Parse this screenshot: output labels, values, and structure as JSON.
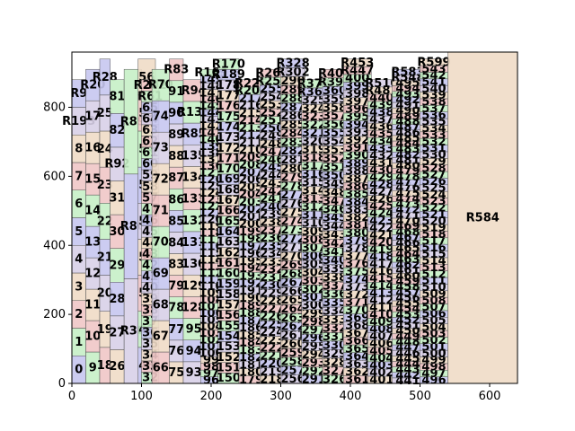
{
  "chart_data": {
    "type": "other",
    "subtype": "packed-rectangles",
    "title": "",
    "xlabel": "",
    "ylabel": "",
    "xlim": [
      0,
      640
    ],
    "ylim": [
      0,
      960
    ],
    "x_ticks": [
      0,
      100,
      200,
      300,
      400,
      500,
      600
    ],
    "y_ticks": [
      0,
      200,
      400,
      600,
      800
    ],
    "grid": false,
    "legend": "none",
    "palette": [
      "#c7c7ef",
      "#c7efc7",
      "#efc7c7",
      "#efdcc7",
      "#d8d0e8"
    ],
    "columns": [
      {
        "x0": 0,
        "x1": 20,
        "labels": [
          "0",
          "1",
          "2",
          "3",
          "4",
          "5",
          "6",
          "7",
          "8",
          "R193",
          "R9"
        ]
      },
      {
        "x0": 20,
        "x1": 40,
        "labels": [
          "9",
          "10",
          "11",
          "12",
          "13",
          "14",
          "15",
          "16",
          "17",
          "R20"
        ]
      },
      {
        "x0": 40,
        "x1": 55,
        "labels": [
          "18",
          "19",
          "20",
          "21",
          "22",
          "23",
          "24",
          "25",
          "R28"
        ]
      },
      {
        "x0": 55,
        "x1": 75,
        "labels": [
          "26",
          "27",
          "28",
          "29",
          "30",
          "31",
          "R92",
          "82",
          "81"
        ]
      },
      {
        "x0": 75,
        "x1": 100,
        "labels": [
          "R38",
          "R80",
          "R89"
        ]
      },
      {
        "x0": 95,
        "x1": 120,
        "labels": [
          "48",
          "49",
          "50",
          "51",
          "52",
          "53",
          "54",
          "55",
          "56"
        ]
      },
      {
        "x0": 100,
        "x1": 125,
        "labels": [
          "32",
          "33",
          "34",
          "35",
          "36",
          "37",
          "38",
          "39",
          "40",
          "41",
          "42",
          "43",
          "44",
          "45",
          "46",
          "47",
          "57",
          "58",
          "59",
          "60",
          "61",
          "62",
          "63",
          "64",
          "65",
          "R61",
          "R202"
        ]
      },
      {
        "x0": 115,
        "x1": 140,
        "labels": [
          "66",
          "67",
          "68",
          "69",
          "70",
          "71",
          "72",
          "73",
          "74",
          "R70"
        ]
      },
      {
        "x0": 140,
        "x1": 160,
        "labels": [
          "75",
          "76",
          "77",
          "78",
          "79",
          "83",
          "84",
          "85",
          "86",
          "87",
          "88",
          "89",
          "90",
          "91",
          "R83"
        ]
      },
      {
        "x0": 160,
        "x1": 190,
        "labels": [
          "93",
          "94",
          "95",
          "128",
          "129",
          "130",
          "131",
          "132",
          "133",
          "134",
          "135",
          "R85",
          "R138",
          "R94"
        ]
      },
      {
        "x0": 185,
        "x1": 215,
        "labels": [
          "96",
          "97",
          "98",
          "99",
          "100",
          "101",
          "102",
          "103",
          "104",
          "105",
          "106",
          "107",
          "108",
          "109",
          "110",
          "111",
          "112",
          "113",
          "114",
          "115",
          "116",
          "117",
          "118",
          "119",
          "120",
          "121",
          "122",
          "123",
          "124",
          "125",
          "126",
          "127",
          "136",
          "137",
          "138",
          "139",
          "140",
          "141",
          "142",
          "143",
          "144",
          "145",
          "146",
          "147",
          "148",
          "149",
          "R169"
        ]
      },
      {
        "x0": 210,
        "x1": 240,
        "labels": [
          "150",
          "151",
          "152",
          "153",
          "154",
          "155",
          "156",
          "157",
          "158",
          "159",
          "160",
          "161",
          "162",
          "163",
          "164",
          "165",
          "166",
          "167",
          "168",
          "169",
          "170",
          "171",
          "172",
          "173",
          "174",
          "175",
          "176",
          "177",
          "178",
          "R189",
          "R170"
        ]
      },
      {
        "x0": 240,
        "x1": 275,
        "labels": [
          "179",
          "180",
          "181",
          "182",
          "183",
          "184",
          "185",
          "186",
          "187",
          "188",
          "189",
          "190",
          "191",
          "192",
          "193",
          "194",
          "195",
          "196",
          "197",
          "198",
          "199",
          "200",
          "201",
          "202",
          "203",
          "204",
          "205",
          "206",
          "207",
          "208",
          "209",
          "210",
          "211",
          "212",
          "213",
          "214",
          "215",
          "216",
          "217",
          "R201",
          "R225"
        ]
      },
      {
        "x0": 270,
        "x1": 305,
        "labels": [
          "218",
          "219",
          "220",
          "221",
          "222",
          "223",
          "224",
          "225",
          "226",
          "227",
          "228",
          "229",
          "230",
          "231",
          "232",
          "233",
          "234",
          "235",
          "236",
          "237",
          "238",
          "239",
          "240",
          "241",
          "242",
          "243",
          "244",
          "245",
          "246",
          "247",
          "248",
          "249",
          "250",
          "251",
          "252",
          "253",
          "254",
          "255",
          "R256",
          "R263"
        ]
      },
      {
        "x0": 300,
        "x1": 335,
        "labels": [
          "256",
          "257",
          "258",
          "259",
          "260",
          "261",
          "262",
          "263",
          "264",
          "265",
          "266",
          "267",
          "268",
          "269",
          "270",
          "271",
          "272",
          "273",
          "274",
          "275",
          "276",
          "277",
          "278",
          "279",
          "280",
          "281",
          "282",
          "283",
          "284",
          "285",
          "286",
          "287",
          "288",
          "289",
          "290",
          "R302",
          "R328"
        ]
      },
      {
        "x0": 330,
        "x1": 365,
        "labels": [
          "291",
          "292",
          "293",
          "294",
          "295",
          "296",
          "297",
          "298",
          "299",
          "300",
          "301",
          "302",
          "303",
          "304",
          "305",
          "306",
          "307",
          "308",
          "309",
          "310",
          "311",
          "312",
          "313",
          "314",
          "315",
          "316",
          "317",
          "318",
          "319",
          "320",
          "321",
          "322",
          "323",
          "324",
          "325",
          "R363",
          "R373"
        ]
      },
      {
        "x0": 360,
        "x1": 395,
        "labels": [
          "326",
          "327",
          "328",
          "329",
          "330",
          "331",
          "332",
          "333",
          "334",
          "335",
          "336",
          "337",
          "338",
          "339",
          "340",
          "341",
          "342",
          "343",
          "344",
          "345",
          "346",
          "347",
          "348",
          "349",
          "350",
          "351",
          "352",
          "353",
          "354",
          "355",
          "356",
          "357",
          "358",
          "359",
          "360",
          "R398",
          "R408"
        ]
      },
      {
        "x0": 390,
        "x1": 430,
        "labels": [
          "361",
          "362",
          "363",
          "364",
          "365",
          "366",
          "367",
          "368",
          "369",
          "370",
          "371",
          "372",
          "373",
          "374",
          "375",
          "376",
          "377",
          "378",
          "379",
          "380",
          "381",
          "382",
          "383",
          "384",
          "385",
          "386",
          "387",
          "388",
          "389",
          "390",
          "391",
          "392",
          "393",
          "394",
          "395",
          "396",
          "397",
          "398",
          "399",
          "400",
          "R447",
          "R453"
        ]
      },
      {
        "x0": 425,
        "x1": 465,
        "labels": [
          "401",
          "402",
          "403",
          "404",
          "405",
          "406",
          "407",
          "408",
          "409",
          "410",
          "411",
          "412",
          "413",
          "414",
          "415",
          "416",
          "417",
          "418",
          "419",
          "420",
          "421",
          "422",
          "423",
          "424",
          "425",
          "426",
          "427",
          "428",
          "429",
          "430",
          "431",
          "432",
          "433",
          "434",
          "435",
          "436",
          "437",
          "438",
          "439",
          "440",
          "R481",
          "R510"
        ]
      },
      {
        "x0": 460,
        "x1": 505,
        "labels": [
          "441",
          "442",
          "443",
          "444",
          "445",
          "446",
          "447",
          "448",
          "449",
          "450",
          "451",
          "452",
          "453",
          "454",
          "455",
          "456",
          "457",
          "458",
          "459",
          "460",
          "461",
          "462",
          "463",
          "464",
          "465",
          "466",
          "467",
          "468",
          "469",
          "470",
          "471",
          "472",
          "473",
          "474",
          "475",
          "476",
          "477",
          "478",
          "479",
          "480",
          "481",
          "482",
          "483",
          "484",
          "485",
          "486",
          "487",
          "488",
          "489",
          "490",
          "491",
          "492",
          "493",
          "494",
          "495",
          "R548",
          "R583"
        ]
      },
      {
        "x0": 500,
        "x1": 540,
        "labels": [
          "496",
          "497",
          "498",
          "499",
          "500",
          "501",
          "502",
          "503",
          "504",
          "505",
          "506",
          "507",
          "508",
          "509",
          "510",
          "511",
          "512",
          "513",
          "514",
          "515",
          "516",
          "517",
          "518",
          "519",
          "520",
          "521",
          "522",
          "523",
          "524",
          "525",
          "526",
          "527",
          "528",
          "529",
          "530",
          "531",
          "532",
          "533",
          "534",
          "535",
          "536",
          "537",
          "538",
          "539",
          "540",
          "541",
          "542",
          "543",
          "R599"
        ]
      },
      {
        "x0": 540,
        "x1": 640,
        "labels": [
          "R584"
        ]
      }
    ]
  }
}
